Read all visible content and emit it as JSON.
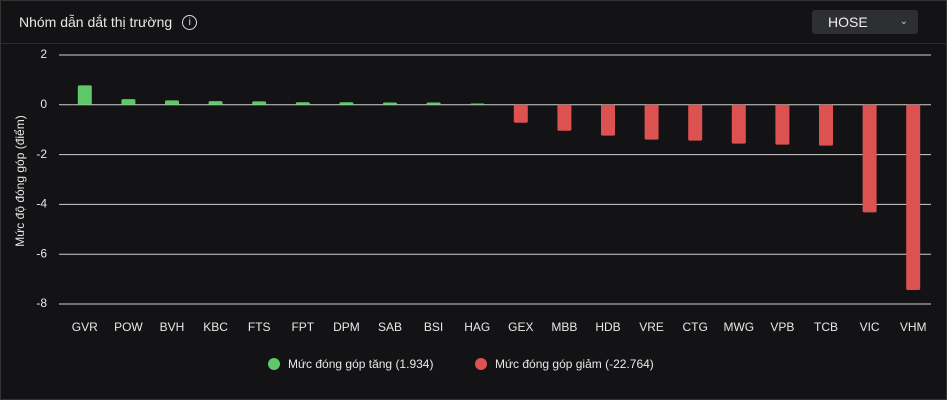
{
  "header": {
    "title": "Nhóm dẫn dắt thị trường",
    "exchange": "HOSE"
  },
  "chart_data": {
    "type": "bar",
    "ylabel": "Mức độ đóng góp (điểm)",
    "categories": [
      "GVR",
      "POW",
      "BVH",
      "KBC",
      "FTS",
      "FPT",
      "DPM",
      "SAB",
      "BSI",
      "HAG",
      "GEX",
      "MBB",
      "HDB",
      "VRE",
      "CTG",
      "MWG",
      "VPB",
      "TCB",
      "VIC",
      "VHM"
    ],
    "series": [
      {
        "name": "Mức đóng góp tăng (1.934)",
        "color": "#5fc96a",
        "values": [
          0.78,
          0.23,
          0.18,
          0.15,
          0.14,
          0.1,
          0.1,
          0.09,
          0.09,
          0.05,
          null,
          null,
          null,
          null,
          null,
          null,
          null,
          null,
          null,
          null
        ]
      },
      {
        "name": "Mức đóng góp giảm (-22.764)",
        "color": "#dc5250",
        "values": [
          null,
          null,
          null,
          null,
          null,
          null,
          null,
          null,
          null,
          null,
          -0.72,
          -1.04,
          -1.24,
          -1.4,
          -1.44,
          -1.56,
          -1.6,
          -1.64,
          -4.32,
          -7.44
        ]
      }
    ],
    "ylim": [
      -8,
      2
    ],
    "yticks": [
      2,
      0,
      -2,
      -4,
      -6,
      -8
    ],
    "grid": true,
    "legend": "bottom"
  }
}
